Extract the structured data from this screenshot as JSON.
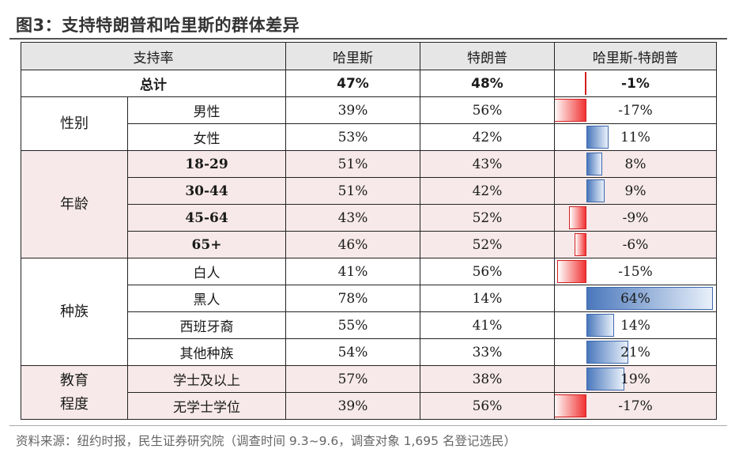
{
  "title": "图3：支持特朗普和哈里斯的群体差异",
  "headers": {
    "category": "支持率",
    "harris": "哈里斯",
    "trump": "特朗普",
    "diff": "哈里斯-特朗普"
  },
  "total": {
    "label": "总计",
    "harris": "47%",
    "trump": "48%",
    "diff": "-1%",
    "diff_value": -1
  },
  "groups": {
    "gender": {
      "label": "性别"
    },
    "age": {
      "label": "年龄"
    },
    "race": {
      "label": "种族"
    },
    "edu": {
      "label": "教育\n程度"
    }
  },
  "rows": [
    {
      "sub": "男性",
      "harris": "39%",
      "trump": "56%",
      "diff": "-17%",
      "diff_value": -17
    },
    {
      "sub": "女性",
      "harris": "53%",
      "trump": "42%",
      "diff": "11%",
      "diff_value": 11
    },
    {
      "sub": "18-29",
      "harris": "51%",
      "trump": "43%",
      "diff": "8%",
      "diff_value": 8
    },
    {
      "sub": "30-44",
      "harris": "51%",
      "trump": "42%",
      "diff": "9%",
      "diff_value": 9
    },
    {
      "sub": "45-64",
      "harris": "43%",
      "trump": "52%",
      "diff": "-9%",
      "diff_value": -9
    },
    {
      "sub": "65+",
      "harris": "46%",
      "trump": "52%",
      "diff": "-6%",
      "diff_value": -6
    },
    {
      "sub": "白人",
      "harris": "41%",
      "trump": "56%",
      "diff": "-15%",
      "diff_value": -15
    },
    {
      "sub": "黑人",
      "harris": "78%",
      "trump": "14%",
      "diff": "64%",
      "diff_value": 64
    },
    {
      "sub": "西班牙裔",
      "harris": "55%",
      "trump": "41%",
      "diff": "14%",
      "diff_value": 14
    },
    {
      "sub": "其他种族",
      "harris": "54%",
      "trump": "33%",
      "diff": "21%",
      "diff_value": 21
    },
    {
      "sub": "学士及以上",
      "harris": "57%",
      "trump": "38%",
      "diff": "19%",
      "diff_value": 19
    },
    {
      "sub": "无学士学位",
      "harris": "39%",
      "trump": "56%",
      "diff": "-17%",
      "diff_value": -17
    }
  ],
  "source": "资料来源：纽约时报，民生证券研究院（调查时间 9.3~9.6，调查对象 1,695 名登记选民）",
  "colors": {
    "negative_bar": "#f13333",
    "positive_bar": "#4a78bc",
    "pink_band": "#f7e9e9",
    "header_bg": "#e6e6e6"
  }
}
